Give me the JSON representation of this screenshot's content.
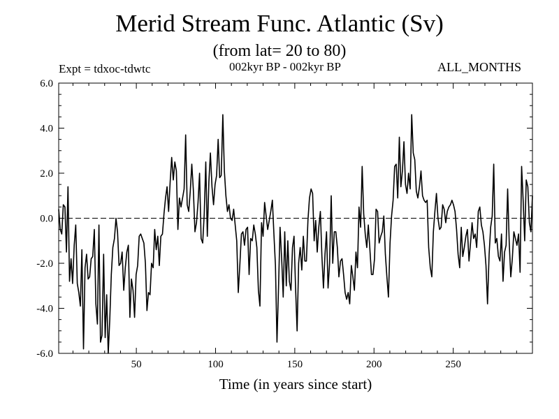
{
  "page": {
    "title": "Merid Stream Func. Atlantic (Sv)",
    "subtitle": "(from lat= 20 to 80)",
    "experiment": "Expt = tdxoc-tdwtc",
    "period": "002kyr BP - 002kyr BP",
    "months": "ALL_MONTHS",
    "xlabel": "Time (in years since start)"
  },
  "colors": {
    "line": "#000000",
    "background": "#ffffff",
    "zero_line": "#000000"
  },
  "chart_data": {
    "type": "line",
    "title": "Merid Stream Func. Atlantic (Sv)",
    "subtitle": "(from lat= 20 to 80)",
    "xlabel": "Time (in years since start)",
    "ylabel": "",
    "xlim": [
      1,
      300
    ],
    "ylim": [
      -6.0,
      6.0
    ],
    "xticks": [
      50,
      100,
      150,
      200,
      250
    ],
    "xtick_labels": [
      "50",
      "100",
      "150",
      "200",
      "250"
    ],
    "yticks": [
      -6,
      -4,
      -2,
      0,
      2,
      4,
      6
    ],
    "ytick_labels": [
      "-6.0",
      "-4.0",
      "-2.0",
      "0.0",
      "2.0",
      "4.0",
      "6.0"
    ],
    "zero_line": "dashed",
    "grid": false,
    "series": [
      {
        "values": [
          0.4,
          -0.5,
          -0.7,
          0.6,
          0.5,
          -1.5,
          1.4,
          -2.8,
          -1.8,
          -2.9,
          -1.2,
          -0.3,
          -2.9,
          -3.3,
          -3.9,
          -1.4,
          -5.8,
          -2.2,
          -1.6,
          -2.7,
          -2.6,
          -1.8,
          -1.7,
          -0.5,
          -3.8,
          -4.7,
          -0.3,
          -5.5,
          -5.2,
          -1.6,
          -5.3,
          -3.4,
          -6.0,
          -4.5,
          -2.5,
          -1.3,
          -0.9,
          0,
          -0.6,
          -2.1,
          -2.0,
          -1.5,
          -3.2,
          -2.2,
          -1.5,
          -1.2,
          -4.4,
          -2.7,
          -3.2,
          -4.4,
          -2.5,
          -2.1,
          -0.8,
          -0.7,
          -0.9,
          -1.1,
          -2.0,
          -4.1,
          -3.3,
          -3.4,
          -2.0,
          -2.2,
          -0.5,
          -1.4,
          -0.8,
          -2.1,
          -0.8,
          -0.7,
          0.2,
          0.9,
          1.4,
          0.3,
          1.6,
          2.7,
          1.7,
          2.5,
          2.1,
          -0.5,
          0.9,
          0.5,
          0.9,
          1.3,
          3.7,
          0.6,
          0.3,
          1.2,
          2.4,
          1.2,
          -0.6,
          -0.2,
          0.7,
          2.0,
          -0.9,
          -1.1,
          0.2,
          2.5,
          -0.8,
          1.6,
          2.9,
          1.4,
          0.6,
          1.5,
          1.9,
          3.5,
          1.8,
          1.9,
          4.6,
          2.1,
          1.0,
          0.3,
          0.6,
          0,
          -0.1,
          0.4,
          -0.3,
          -1.0,
          -3.3,
          -2.1,
          -0.7,
          -0.6,
          -1.2,
          -0.5,
          -0.4,
          -2.5,
          -0.9,
          -1.0,
          -0.3,
          -0.7,
          -1.3,
          -3.2,
          -3.9,
          -0.2,
          -0.8,
          0.7,
          0.1,
          -0.5,
          -0.1,
          0.3,
          0.8,
          -0.7,
          -2.1,
          -5.5,
          -3.1,
          -0.4,
          -1.8,
          -3.5,
          -0.6,
          -3.0,
          -1.0,
          -2.8,
          -3.2,
          -1.3,
          -0.8,
          -3.1,
          -5.0,
          -2.0,
          -1.3,
          -2.3,
          -0.8,
          -1.9,
          -1.9,
          -0.1,
          0.9,
          1.3,
          1.1,
          -1.0,
          -0.1,
          -1.5,
          -0.4,
          0.3,
          -1.7,
          -3.1,
          -1.6,
          -0.6,
          -3.1,
          -2.0,
          1.0,
          -2.0,
          -0.6,
          -0.6,
          -1.3,
          -2.6,
          -1.9,
          -1.8,
          -2.5,
          -3.3,
          -3.6,
          -3.3,
          -3.8,
          -2.1,
          -2.6,
          -3.2,
          -1.5,
          -2.2,
          0.5,
          -0.4,
          2.3,
          0.2,
          -0.7,
          -1.3,
          -0.3,
          -1.4,
          -2.5,
          -2.5,
          -1.8,
          0.4,
          0.3,
          -1.1,
          -0.8,
          -0.6,
          0.1,
          -1.6,
          -2.6,
          -3.5,
          -1.1,
          0.1,
          0.8,
          2.3,
          2.4,
          0.9,
          3.6,
          1.4,
          2.1,
          3.4,
          1.5,
          1.1,
          2.0,
          1.3,
          4.6,
          2.9,
          2.6,
          1.2,
          0.9,
          1.4,
          2.1,
          1.0,
          0.8,
          0.7,
          0.8,
          -1.3,
          -2.2,
          -2.6,
          -0.6,
          0.3,
          1.1,
          0,
          -0.5,
          -0.4,
          0.6,
          0.4,
          -0.2,
          0.3,
          0.5,
          0.6,
          0.8,
          0.6,
          0.3,
          -0.5,
          -1.6,
          -2.2,
          -0.4,
          -1.7,
          -1.3,
          -0.8,
          -0.5,
          -1.9,
          -1.1,
          -0.2,
          -0.9,
          -0.7,
          -1.3,
          0.3,
          0.5,
          -0.3,
          -0.6,
          -1.2,
          -2.1,
          -3.8,
          -1.6,
          -0.4,
          0.1,
          2.4,
          -1.1,
          -0.9,
          -1.7,
          -1.9,
          -0.7,
          -2.8,
          -1.5,
          -1.2,
          1.3,
          -1.1,
          -2.6,
          -1.8,
          -0.6,
          -0.9,
          -1.2,
          -0.7,
          -2.4,
          2.3,
          0.8,
          -1.0,
          1.7,
          1.4,
          -0.2,
          -0.6,
          1.0
        ]
      }
    ]
  }
}
